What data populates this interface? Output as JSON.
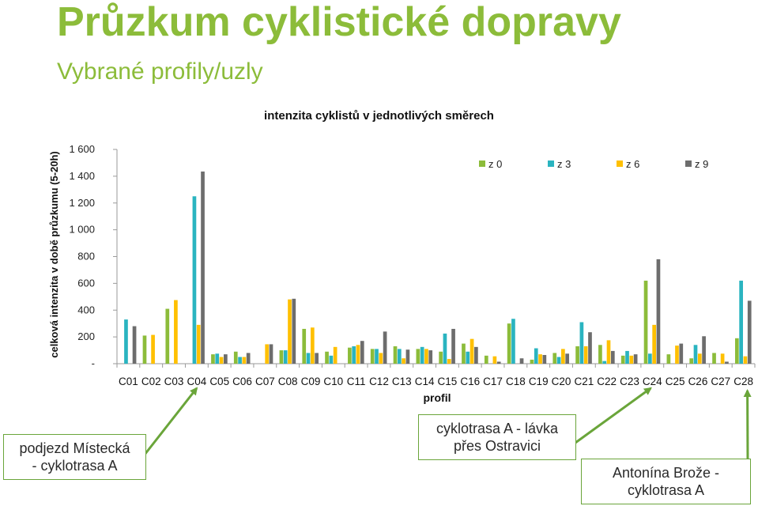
{
  "page": {
    "title": "Průzkum cyklistické dopravy",
    "subtitle": "Vybrané profily/uzly"
  },
  "annotations": [
    {
      "line1": "podjezd Místecká",
      "line2": "- cyklotrasa A",
      "category": "C04"
    },
    {
      "line1": "cyklotrasa A - lávka",
      "line2": "přes Ostravici",
      "category": "C24"
    },
    {
      "line1": "Antonína Brože -",
      "line2": "cyklotrasa A",
      "category": "C28"
    }
  ],
  "colors": {
    "title": "#8cbc3a",
    "z0": "#8cbc3a",
    "z3": "#2ab4c0",
    "z6": "#ffc000",
    "z9": "#6d6d6d",
    "annotation_border": "#6aa53a"
  },
  "chart_data": {
    "type": "bar",
    "title": "intenzita cyklistů v jednotlivých směrech",
    "xlabel": "profil",
    "ylabel": "celková intenzita v době průzkumu (5-20h)",
    "ylim": [
      0,
      1600
    ],
    "yticks": [
      0,
      200,
      400,
      600,
      800,
      1000,
      1200,
      1400,
      1600
    ],
    "ytick_labels": [
      "-",
      "200",
      "400",
      "600",
      "800",
      "1 000",
      "1 200",
      "1 400",
      "1 600"
    ],
    "legend_position": "top-right",
    "grid": false,
    "categories": [
      "C01",
      "C02",
      "C03",
      "C04",
      "C05",
      "C06",
      "C07",
      "C08",
      "C09",
      "C10",
      "C11",
      "C12",
      "C13",
      "C14",
      "C15",
      "C16",
      "C17",
      "C18",
      "C19",
      "C20",
      "C21",
      "C22",
      "C23",
      "C24",
      "C25",
      "C26",
      "C27",
      "C28"
    ],
    "series": [
      {
        "name": "z 0",
        "values": [
          0,
          210,
          410,
          0,
          70,
          90,
          0,
          100,
          260,
          90,
          120,
          110,
          130,
          110,
          90,
          150,
          60,
          300,
          30,
          80,
          130,
          140,
          60,
          620,
          70,
          40,
          80,
          190
        ]
      },
      {
        "name": "z 3",
        "values": [
          330,
          0,
          0,
          1250,
          75,
          50,
          0,
          100,
          80,
          60,
          130,
          110,
          110,
          125,
          225,
          90,
          0,
          335,
          115,
          50,
          310,
          20,
          95,
          75,
          0,
          140,
          0,
          620
        ]
      },
      {
        "name": "z 6",
        "values": [
          0,
          215,
          475,
          290,
          50,
          50,
          145,
          480,
          270,
          125,
          140,
          80,
          40,
          110,
          35,
          185,
          55,
          0,
          70,
          110,
          130,
          175,
          60,
          290,
          135,
          75,
          75,
          55
        ]
      },
      {
        "name": "z 9",
        "values": [
          280,
          0,
          0,
          1435,
          70,
          80,
          145,
          485,
          80,
          0,
          170,
          240,
          105,
          100,
          260,
          125,
          15,
          40,
          65,
          75,
          235,
          95,
          70,
          780,
          150,
          205,
          15,
          470
        ]
      }
    ]
  }
}
